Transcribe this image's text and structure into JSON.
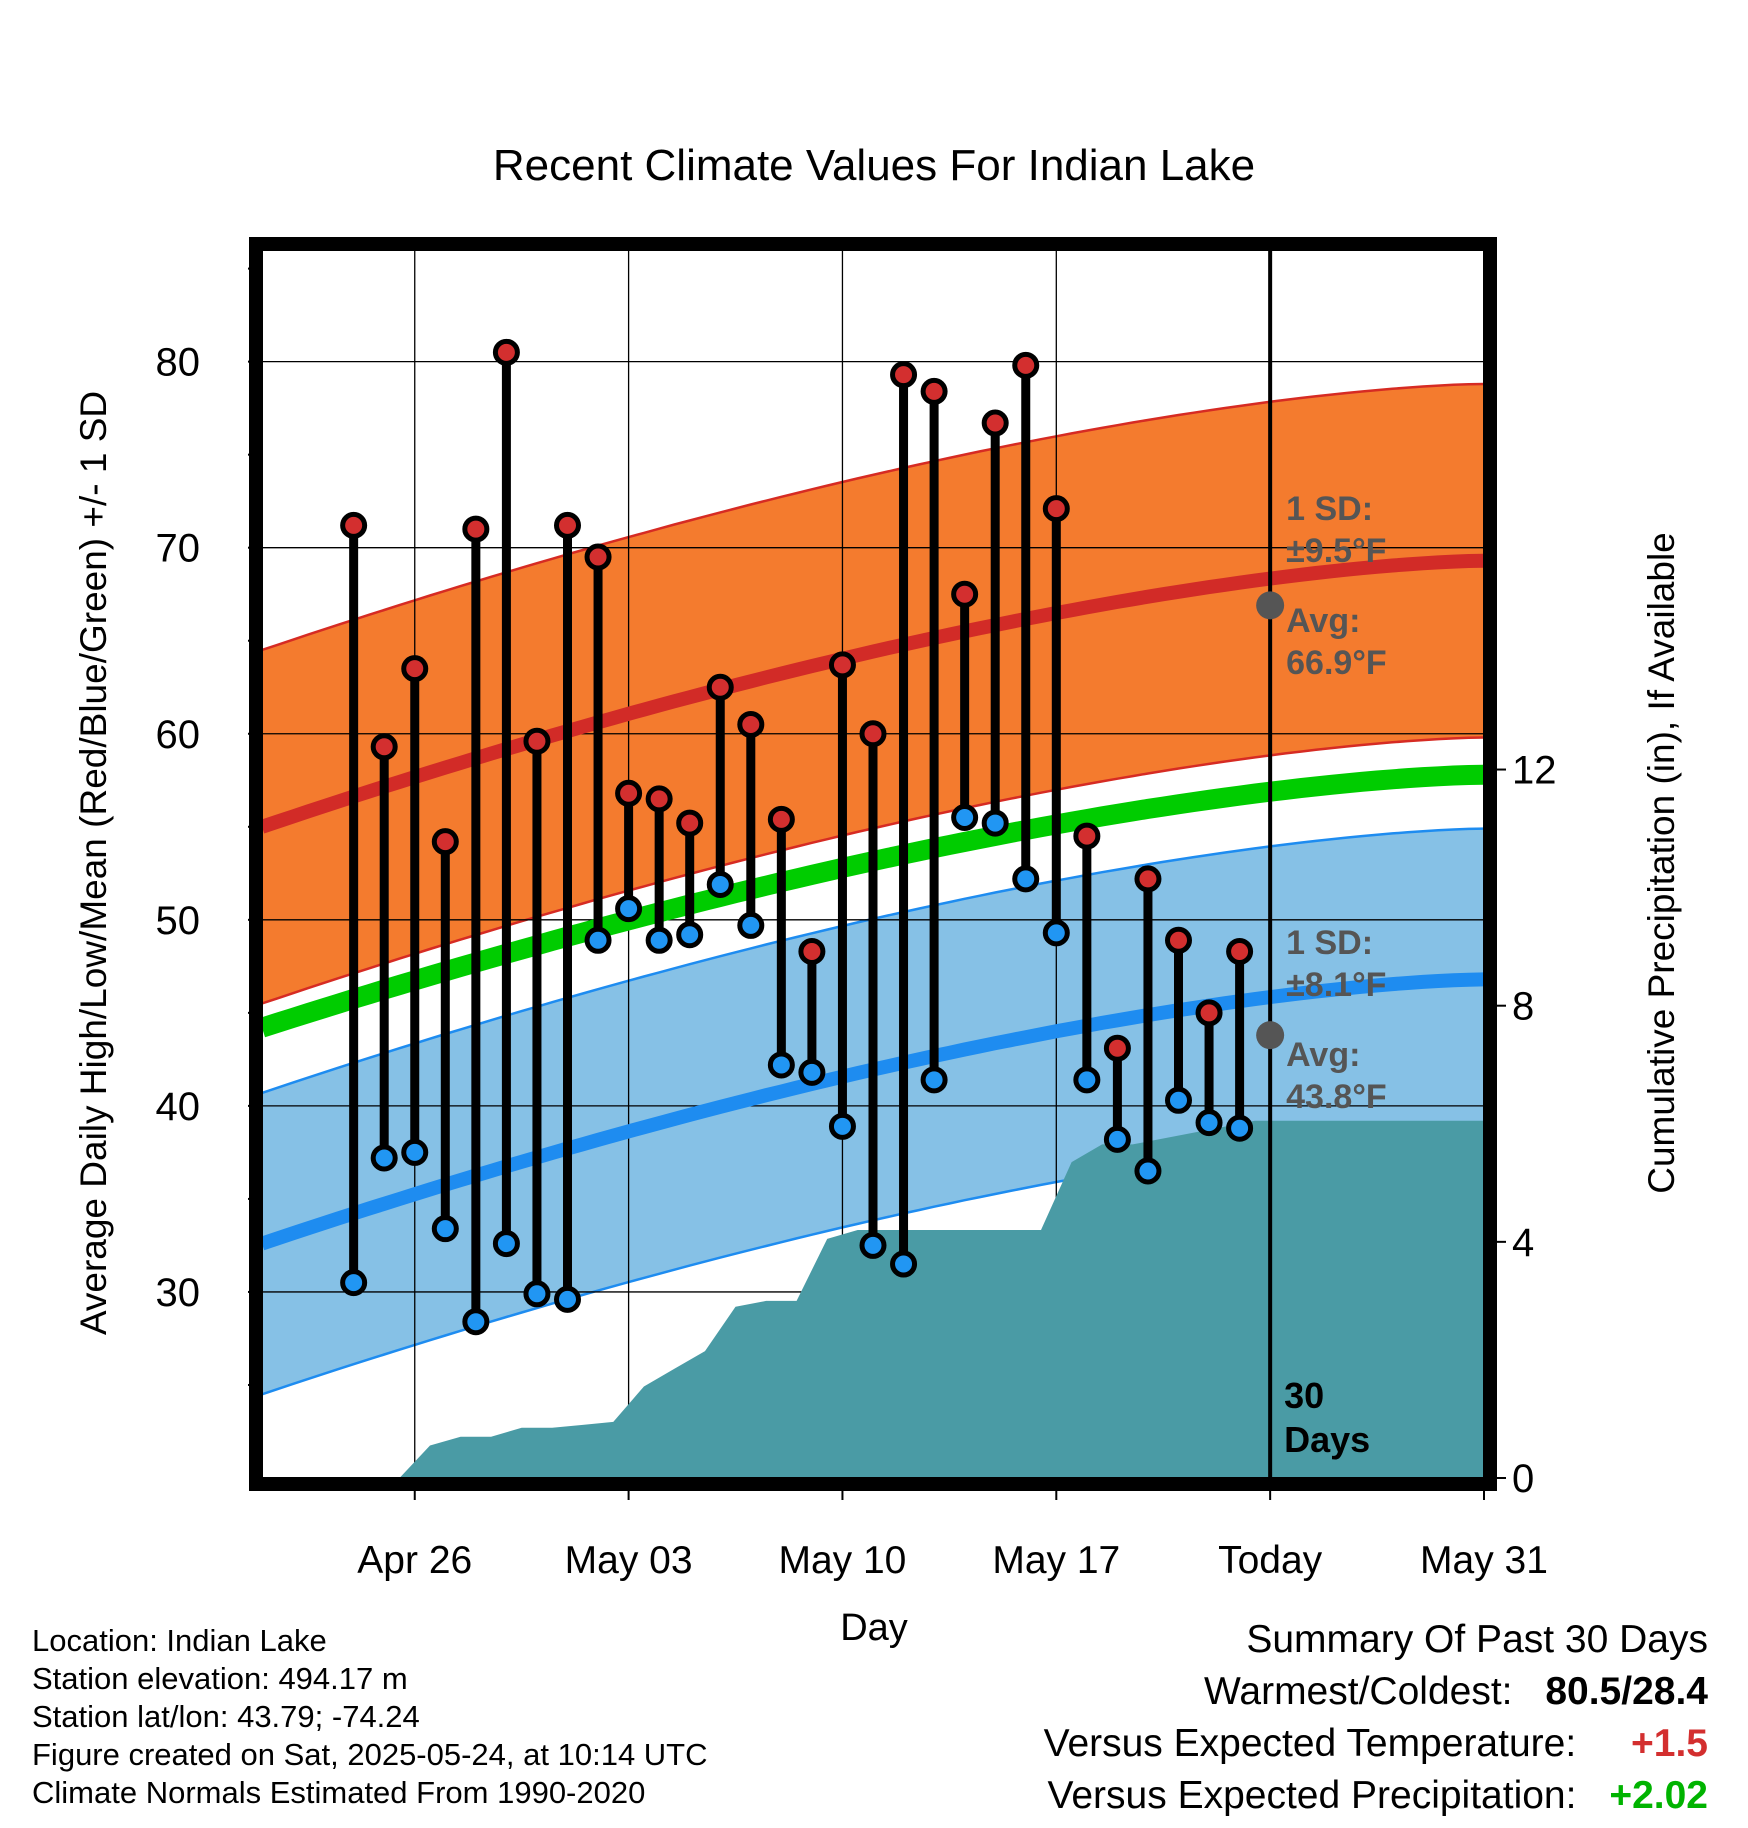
{
  "chart_data": {
    "type": "line",
    "title": "Recent Climate Values For Indian Lake",
    "xlabel": "Day",
    "ylabel": "Average Daily High/Low/Mean (Red/Blue/Green) +/- 1 SD",
    "y2label": "Cumulative Precipitation (in), If Available",
    "ylim": [
      20,
      86
    ],
    "y_ticks": [
      "30",
      "40",
      "50",
      "60",
      "70",
      "80"
    ],
    "y2lim": [
      0,
      20.8
    ],
    "y2_ticks": [
      "0",
      "4",
      "8",
      "12"
    ],
    "x_range_days": [
      -2,
      38
    ],
    "x_ticks": [
      {
        "day": 3,
        "label": "Apr 26"
      },
      {
        "day": 10,
        "label": "May 03"
      },
      {
        "day": 17,
        "label": "May 10"
      },
      {
        "day": 24,
        "label": "May 17"
      },
      {
        "day": 31,
        "label": "Today"
      },
      {
        "day": 38,
        "label": "May 31"
      }
    ],
    "x_day_origin": "Apr 23",
    "normals": {
      "high_mean": {
        "start": 55.0,
        "end": 69.3
      },
      "low_mean": {
        "start": 32.6,
        "end": 46.8
      },
      "mean": {
        "start": 44.2,
        "end": 57.8
      },
      "high_sd": 9.5,
      "low_sd": 8.1
    },
    "today_marker": {
      "label_high_sd": "1 SD:",
      "value_high_sd": "±9.5°F",
      "label_high_avg": "Avg:",
      "value_high_avg": "66.9°F",
      "label_low_sd": "1 SD:",
      "value_low_sd": "±8.1°F",
      "label_low_avg": "Avg:",
      "value_low_avg": "43.8°F",
      "high_avg_value": 66.9,
      "low_avg_value": 43.8
    },
    "series": [
      {
        "name": "Daily High",
        "points": [
          [
            1,
            71.2
          ],
          [
            2,
            59.3
          ],
          [
            3,
            63.5
          ],
          [
            4,
            54.2
          ],
          [
            5,
            71.0
          ],
          [
            6,
            80.5
          ],
          [
            7,
            59.6
          ],
          [
            8,
            71.2
          ],
          [
            9,
            69.5
          ],
          [
            10,
            56.8
          ],
          [
            11,
            56.5
          ],
          [
            12,
            55.2
          ],
          [
            13,
            62.5
          ],
          [
            14,
            60.5
          ],
          [
            15,
            55.4
          ],
          [
            16,
            48.3
          ],
          [
            17,
            63.7
          ],
          [
            18,
            60.0
          ],
          [
            19,
            79.3
          ],
          [
            20,
            78.4
          ],
          [
            21,
            67.5
          ],
          [
            22,
            76.7
          ],
          [
            23,
            79.8
          ],
          [
            24,
            72.1
          ],
          [
            25,
            54.5
          ],
          [
            26,
            43.1
          ],
          [
            27,
            52.2
          ],
          [
            28,
            48.9
          ],
          [
            29,
            45.0
          ],
          [
            30,
            48.3
          ]
        ]
      },
      {
        "name": "Daily Low",
        "points": [
          [
            1,
            30.5
          ],
          [
            2,
            37.2
          ],
          [
            3,
            37.5
          ],
          [
            4,
            33.4
          ],
          [
            5,
            28.4
          ],
          [
            6,
            32.6
          ],
          [
            7,
            29.9
          ],
          [
            8,
            29.6
          ],
          [
            9,
            48.9
          ],
          [
            10,
            50.6
          ],
          [
            11,
            48.9
          ],
          [
            12,
            49.2
          ],
          [
            13,
            51.9
          ],
          [
            14,
            49.7
          ],
          [
            15,
            42.2
          ],
          [
            16,
            41.8
          ],
          [
            17,
            38.9
          ],
          [
            18,
            32.5
          ],
          [
            19,
            31.5
          ],
          [
            20,
            41.4
          ],
          [
            21,
            55.5
          ],
          [
            22,
            55.2
          ],
          [
            23,
            52.2
          ],
          [
            24,
            49.3
          ],
          [
            25,
            41.4
          ],
          [
            26,
            38.2
          ],
          [
            27,
            36.5
          ],
          [
            28,
            40.3
          ],
          [
            29,
            39.1
          ],
          [
            30,
            38.8
          ]
        ]
      },
      {
        "name": "Cumulative Precipitation",
        "points": [
          [
            1,
            0
          ],
          [
            2,
            0
          ],
          [
            3,
            0.55
          ],
          [
            4,
            0.7
          ],
          [
            5,
            0.7
          ],
          [
            6,
            0.85
          ],
          [
            7,
            0.85
          ],
          [
            8,
            0.9
          ],
          [
            9,
            0.95
          ],
          [
            10,
            1.55
          ],
          [
            11,
            1.85
          ],
          [
            12,
            2.15
          ],
          [
            13,
            2.9
          ],
          [
            14,
            3.0
          ],
          [
            15,
            3.0
          ],
          [
            16,
            4.05
          ],
          [
            17,
            4.2
          ],
          [
            18,
            4.2
          ],
          [
            19,
            4.2
          ],
          [
            20,
            4.2
          ],
          [
            21,
            4.2
          ],
          [
            22,
            4.2
          ],
          [
            23,
            4.2
          ],
          [
            24,
            5.35
          ],
          [
            25,
            5.65
          ],
          [
            26,
            5.65
          ],
          [
            27,
            5.75
          ],
          [
            28,
            5.85
          ],
          [
            29,
            5.95
          ],
          [
            30,
            6.05
          ],
          [
            31,
            6.05
          ],
          [
            38,
            6.05
          ]
        ]
      }
    ],
    "annotation_days": "30",
    "annotation_days_label": "Days",
    "grid": true,
    "colors": {
      "high_band": "#F47B2E",
      "high_band_edge": "#D62B23",
      "high_line": "#D22B27",
      "low_band": "#86C1E6",
      "low_band_edge": "#1E8CF0",
      "low_line": "#1E8CF0",
      "mean_line": "#00CC00",
      "precip": "#4A9BA5",
      "high_marker": "#D32F2F",
      "low_marker": "#2196F3",
      "today_marker": "#555555",
      "warm": "#D32F2F",
      "wet": "#00B300"
    }
  },
  "info": {
    "location": "Location: Indian Lake",
    "elevation": "Station elevation: 494.17 m",
    "latlon": "Station lat/lon: 43.79; -74.24",
    "created": "Figure created on Sat, 2025-05-24, at 10:14 UTC",
    "normals": "Climate Normals Estimated From 1990-2020"
  },
  "summary": {
    "heading": "Summary Of Past 30 Days",
    "warm_cold_label": "Warmest/Coldest:",
    "warm_cold_value": "80.5/28.4",
    "temp_label": "Versus Expected Temperature:",
    "temp_value": "+1.5",
    "precip_label": "Versus Expected Precipitation:",
    "precip_value": "+2.02"
  }
}
